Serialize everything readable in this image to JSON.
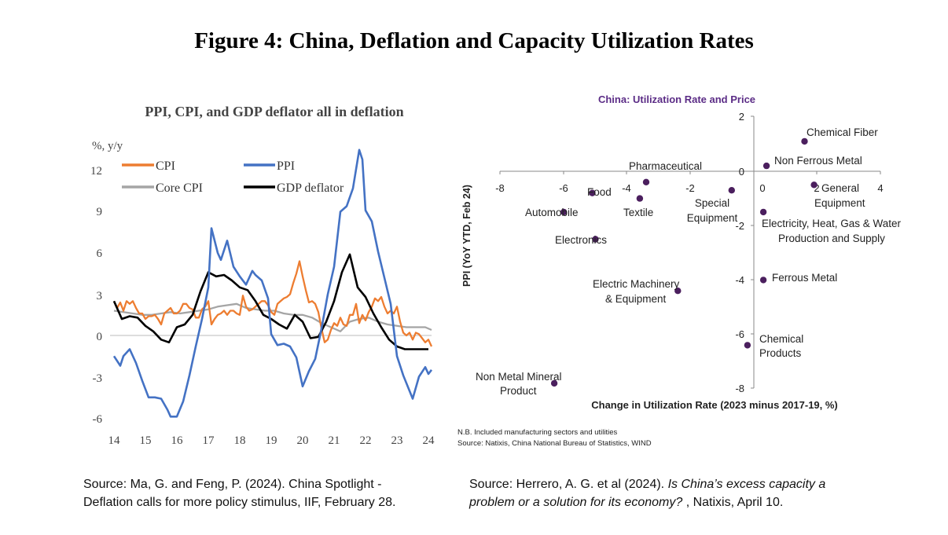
{
  "figure_title": "Figure 4: China, Deflation and Capacity Utilization Rates",
  "colors": {
    "cpi": "#ED7D31",
    "ppi": "#4472C4",
    "core_cpi": "#A5A5A5",
    "gdp_deflator": "#000000",
    "scatter_point": "#4B1F5E",
    "scatter_title": "#5B2C86"
  },
  "chart_data": [
    {
      "type": "line",
      "title": "PPI, CPI, and GDP deflator all in deflation",
      "ylabel": "%, y/y",
      "xlabel": "",
      "x_ticks": [
        "14",
        "15",
        "16",
        "17",
        "18",
        "19",
        "20",
        "21",
        "22",
        "23",
        "24"
      ],
      "y_ticks": [
        "12",
        "9",
        "6",
        "3",
        "0",
        "-3",
        "-6"
      ],
      "ylim": [
        -7,
        14
      ],
      "xlim": [
        2014,
        2024.2
      ],
      "legend": [
        "CPI",
        "PPI",
        "Core CPI",
        "GDP deflator"
      ],
      "series": [
        {
          "name": "CPI",
          "x": [
            2014.0,
            2014.1,
            2014.2,
            2014.3,
            2014.4,
            2014.5,
            2014.6,
            2014.7,
            2014.8,
            2014.9,
            2015.0,
            2015.1,
            2015.2,
            2015.3,
            2015.4,
            2015.5,
            2015.6,
            2015.7,
            2015.8,
            2015.9,
            2016.0,
            2016.1,
            2016.2,
            2016.3,
            2016.4,
            2016.5,
            2016.6,
            2016.7,
            2016.8,
            2016.9,
            2017.0,
            2017.1,
            2017.2,
            2017.3,
            2017.4,
            2017.5,
            2017.6,
            2017.7,
            2017.8,
            2017.9,
            2018.0,
            2018.1,
            2018.2,
            2018.3,
            2018.4,
            2018.5,
            2018.6,
            2018.7,
            2018.8,
            2018.9,
            2019.0,
            2019.1,
            2019.2,
            2019.3,
            2019.4,
            2019.5,
            2019.6,
            2019.7,
            2019.8,
            2019.9,
            2020.0,
            2020.1,
            2020.2,
            2020.3,
            2020.4,
            2020.5,
            2020.6,
            2020.7,
            2020.8,
            2020.9,
            2021.0,
            2021.1,
            2021.2,
            2021.3,
            2021.4,
            2021.5,
            2021.6,
            2021.7,
            2021.8,
            2021.9,
            2022.0,
            2022.1,
            2022.2,
            2022.3,
            2022.4,
            2022.5,
            2022.6,
            2022.7,
            2022.8,
            2022.9,
            2023.0,
            2023.1,
            2023.2,
            2023.3,
            2023.4,
            2023.5,
            2023.6,
            2023.7,
            2023.8,
            2023.9,
            2024.0,
            2024.1
          ],
          "values": [
            2.5,
            2.0,
            2.4,
            1.8,
            2.5,
            2.3,
            2.5,
            2.0,
            1.6,
            1.6,
            1.2,
            1.4,
            1.4,
            1.5,
            1.2,
            0.8,
            1.6,
            1.8,
            2.0,
            1.6,
            1.6,
            1.8,
            2.3,
            2.3,
            2.0,
            1.9,
            1.3,
            1.3,
            1.9,
            2.1,
            2.5,
            0.8,
            1.2,
            1.5,
            1.6,
            1.8,
            1.5,
            1.8,
            1.8,
            1.6,
            1.5,
            2.9,
            2.1,
            1.8,
            1.9,
            2.1,
            2.3,
            2.5,
            2.5,
            2.2,
            1.7,
            1.5,
            2.3,
            2.5,
            2.7,
            2.8,
            3.0,
            3.8,
            4.5,
            5.4,
            4.3,
            3.3,
            2.4,
            2.5,
            2.3,
            1.7,
            0.5,
            -0.5,
            -0.3,
            0.4,
            0.9,
            0.7,
            1.3,
            0.8,
            0.7,
            1.5,
            1.5,
            2.3,
            0.9,
            1.5,
            1.1,
            1.7,
            2.1,
            2.7,
            2.5,
            2.8,
            2.1,
            1.6,
            1.8,
            1.6,
            2.1,
            1.0,
            0.2,
            0.0,
            0.2,
            -0.3,
            0.2,
            0.1,
            -0.2,
            -0.5,
            -0.3,
            -0.8
          ]
        },
        {
          "name": "PPI",
          "x": [
            2014.0,
            2014.2,
            2014.3,
            2014.5,
            2014.7,
            2014.9,
            2015.1,
            2015.3,
            2015.5,
            2015.7,
            2015.8,
            2016.0,
            2016.2,
            2016.4,
            2016.6,
            2016.8,
            2017.0,
            2017.1,
            2017.3,
            2017.4,
            2017.6,
            2017.8,
            2018.0,
            2018.2,
            2018.4,
            2018.5,
            2018.7,
            2018.9,
            2019.0,
            2019.2,
            2019.4,
            2019.6,
            2019.8,
            2020.0,
            2020.2,
            2020.4,
            2020.6,
            2020.8,
            2021.0,
            2021.2,
            2021.4,
            2021.6,
            2021.8,
            2021.9,
            2022.0,
            2022.2,
            2022.4,
            2022.6,
            2022.8,
            2023.0,
            2023.2,
            2023.5,
            2023.7,
            2023.9,
            2024.0,
            2024.1
          ],
          "values": [
            -1.5,
            -2.2,
            -1.5,
            -1.0,
            -2.0,
            -3.3,
            -4.5,
            -4.5,
            -4.6,
            -5.4,
            -5.9,
            -5.9,
            -4.8,
            -2.9,
            -0.8,
            1.2,
            3.5,
            7.8,
            6.0,
            5.5,
            6.9,
            5.0,
            4.3,
            3.7,
            4.7,
            4.4,
            4.0,
            2.7,
            0.1,
            -0.7,
            -0.6,
            -0.8,
            -1.6,
            -3.7,
            -2.6,
            -1.7,
            0.5,
            3.0,
            5.0,
            9.0,
            9.4,
            10.7,
            13.5,
            12.8,
            9.1,
            8.3,
            6.1,
            4.2,
            2.3,
            -1.5,
            -2.9,
            -4.6,
            -3.0,
            -2.3,
            -2.8,
            -2.5
          ]
        },
        {
          "name": "Core CPI",
          "x": [
            2014.0,
            2014.3,
            2014.6,
            2014.9,
            2015.2,
            2015.5,
            2015.8,
            2016.1,
            2016.4,
            2016.7,
            2017.0,
            2017.3,
            2017.6,
            2017.9,
            2018.2,
            2018.5,
            2018.8,
            2019.1,
            2019.4,
            2019.7,
            2020.0,
            2020.3,
            2020.6,
            2020.9,
            2021.2,
            2021.5,
            2021.8,
            2022.1,
            2022.4,
            2022.7,
            2023.0,
            2023.3,
            2023.6,
            2023.9,
            2024.1
          ],
          "values": [
            1.8,
            1.7,
            1.6,
            1.5,
            1.5,
            1.6,
            1.7,
            1.6,
            1.7,
            1.8,
            1.9,
            2.1,
            2.2,
            2.3,
            2.0,
            1.9,
            1.8,
            1.8,
            1.6,
            1.5,
            1.5,
            1.3,
            0.9,
            0.6,
            0.3,
            1.0,
            1.2,
            1.3,
            1.0,
            0.8,
            0.7,
            0.6,
            0.6,
            0.6,
            0.4
          ]
        },
        {
          "name": "GDP deflator",
          "x": [
            2014.0,
            2014.25,
            2014.5,
            2014.75,
            2015.0,
            2015.25,
            2015.5,
            2015.75,
            2016.0,
            2016.25,
            2016.5,
            2016.75,
            2017.0,
            2017.25,
            2017.5,
            2017.75,
            2018.0,
            2018.25,
            2018.5,
            2018.75,
            2019.0,
            2019.25,
            2019.5,
            2019.75,
            2020.0,
            2020.25,
            2020.5,
            2020.75,
            2021.0,
            2021.25,
            2021.5,
            2021.75,
            2022.0,
            2022.25,
            2022.5,
            2022.75,
            2023.0,
            2023.25,
            2023.5,
            2023.75,
            2024.0
          ],
          "values": [
            2.5,
            1.2,
            1.4,
            1.3,
            0.7,
            0.3,
            -0.3,
            -0.5,
            0.6,
            0.8,
            1.5,
            3.2,
            4.6,
            4.3,
            4.4,
            4.0,
            3.5,
            3.3,
            2.5,
            1.5,
            1.2,
            0.8,
            0.5,
            1.5,
            1.0,
            -0.2,
            -0.1,
            1.0,
            2.5,
            4.6,
            5.9,
            3.5,
            2.8,
            1.6,
            0.6,
            -0.3,
            -0.8,
            -1.0,
            -1.0,
            -1.0,
            -1.0
          ]
        }
      ]
    },
    {
      "type": "scatter",
      "title": "China: Utilization Rate and Price",
      "xlabel": "Change in Utilization Rate (2023 minus 2017-19, %)",
      "ylabel": "PPI (YoY YTD, Feb 24)",
      "xlim": [
        -8,
        4
      ],
      "ylim": [
        -8,
        2
      ],
      "x_ticks": [
        "-8",
        "-6",
        "-4",
        "-2",
        "0",
        "2",
        "4"
      ],
      "y_ticks": [
        "2",
        "0",
        "-2",
        "-4",
        "-6",
        "-8"
      ],
      "points": [
        {
          "label": "Chemical Fiber",
          "x": 1.6,
          "y": 1.1
        },
        {
          "label": "Non Ferrous Metal",
          "x": 0.4,
          "y": 0.2
        },
        {
          "label": "General Equipment",
          "x": 1.9,
          "y": -0.5
        },
        {
          "label": "Pharmaceutical",
          "x": -3.4,
          "y": -0.4
        },
        {
          "label": "Food",
          "x": -5.1,
          "y": -0.8
        },
        {
          "label": "Special Equipment",
          "x": -0.7,
          "y": -0.7
        },
        {
          "label": "Textile",
          "x": -3.6,
          "y": -1.0
        },
        {
          "label": "Automobile",
          "x": -6.0,
          "y": -1.5
        },
        {
          "label": "Electricity, Heat, Gas & Water Production and Supply",
          "x": 0.3,
          "y": -1.5
        },
        {
          "label": "Electronics",
          "x": -5.0,
          "y": -2.5
        },
        {
          "label": "Ferrous Metal",
          "x": 0.3,
          "y": -4.0
        },
        {
          "label": "Electric Machinery & Equipment",
          "x": -2.4,
          "y": -4.4
        },
        {
          "label": "Chemical Products",
          "x": -0.2,
          "y": -6.4
        },
        {
          "label": "Non Metal Mineral Product",
          "x": -6.3,
          "y": -7.8
        }
      ]
    }
  ],
  "left_chart": {
    "title": "PPI, CPI, and GDP deflator all in deflation",
    "y_unit": "%, y/y",
    "legend_cpi": "CPI",
    "legend_ppi": "PPI",
    "legend_core": "Core CPI",
    "legend_gdp": "GDP deflator"
  },
  "right_chart": {
    "title": "China: Utilization Rate and Price",
    "xlabel": "Change in Utilization Rate (2023 minus 2017-19, %)",
    "ylabel": "PPI (YoY YTD, Feb 24)",
    "note": "N.B. Included manufacturing sectors and utilities",
    "source": "Source: Natixis, China National Bureau of Statistics, WIND",
    "labels": {
      "chemical_fiber": "Chemical Fiber",
      "non_ferrous": "Non Ferrous Metal",
      "general_eq_1": "General",
      "general_eq_2": "Equipment",
      "pharmaceutical": "Pharmaceutical",
      "food": "Food",
      "special_eq_1": "Special",
      "special_eq_2": "Equipment",
      "textile": "Textile",
      "automobile": "Automobile",
      "electricity_1": "Electricity, Heat, Gas & Water",
      "electricity_2": "Production and Supply",
      "electronics": "Electronics",
      "ferrous": "Ferrous Metal",
      "electric_mach_1": "Electric Machinery",
      "electric_mach_2": "& Equipment",
      "chemical_products_1": "Chemical",
      "chemical_products_2": "Products",
      "non_metal_1": "Non Metal Mineral",
      "non_metal_2": "Product"
    }
  },
  "sources": {
    "left_1": "Source: Ma, G. and Feng, P. (2024). China Spotlight -",
    "left_2": "Deflation calls for more policy stimulus, IIF, February 28.",
    "right_1_prefix": "Source: Herrero, A. G. et al (2024). ",
    "right_1_italic": "Is China’s excess capacity a",
    "right_2_italic": "problem or a solution for its economy? ",
    "right_2_suffix": ", Natixis, April 10."
  }
}
